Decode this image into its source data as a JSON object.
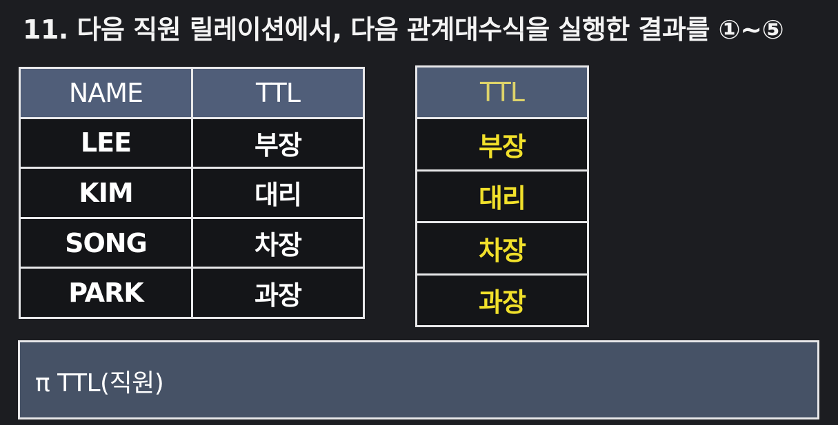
{
  "title": "11. 다음 직원 릴레이션에서, 다음 관계대수식을 실행한 결과를 ①~⑤",
  "employee_table": {
    "headers": [
      "NAME",
      "TTL"
    ],
    "rows": [
      [
        "LEE",
        "부장"
      ],
      [
        "KIM",
        "대리"
      ],
      [
        "SONG",
        "차장"
      ],
      [
        "PARK",
        "과장"
      ]
    ]
  },
  "result_table": {
    "header": "TTL",
    "rows": [
      "부장",
      "대리",
      "차장",
      "과장"
    ]
  },
  "expression": "π TTL(직원)"
}
